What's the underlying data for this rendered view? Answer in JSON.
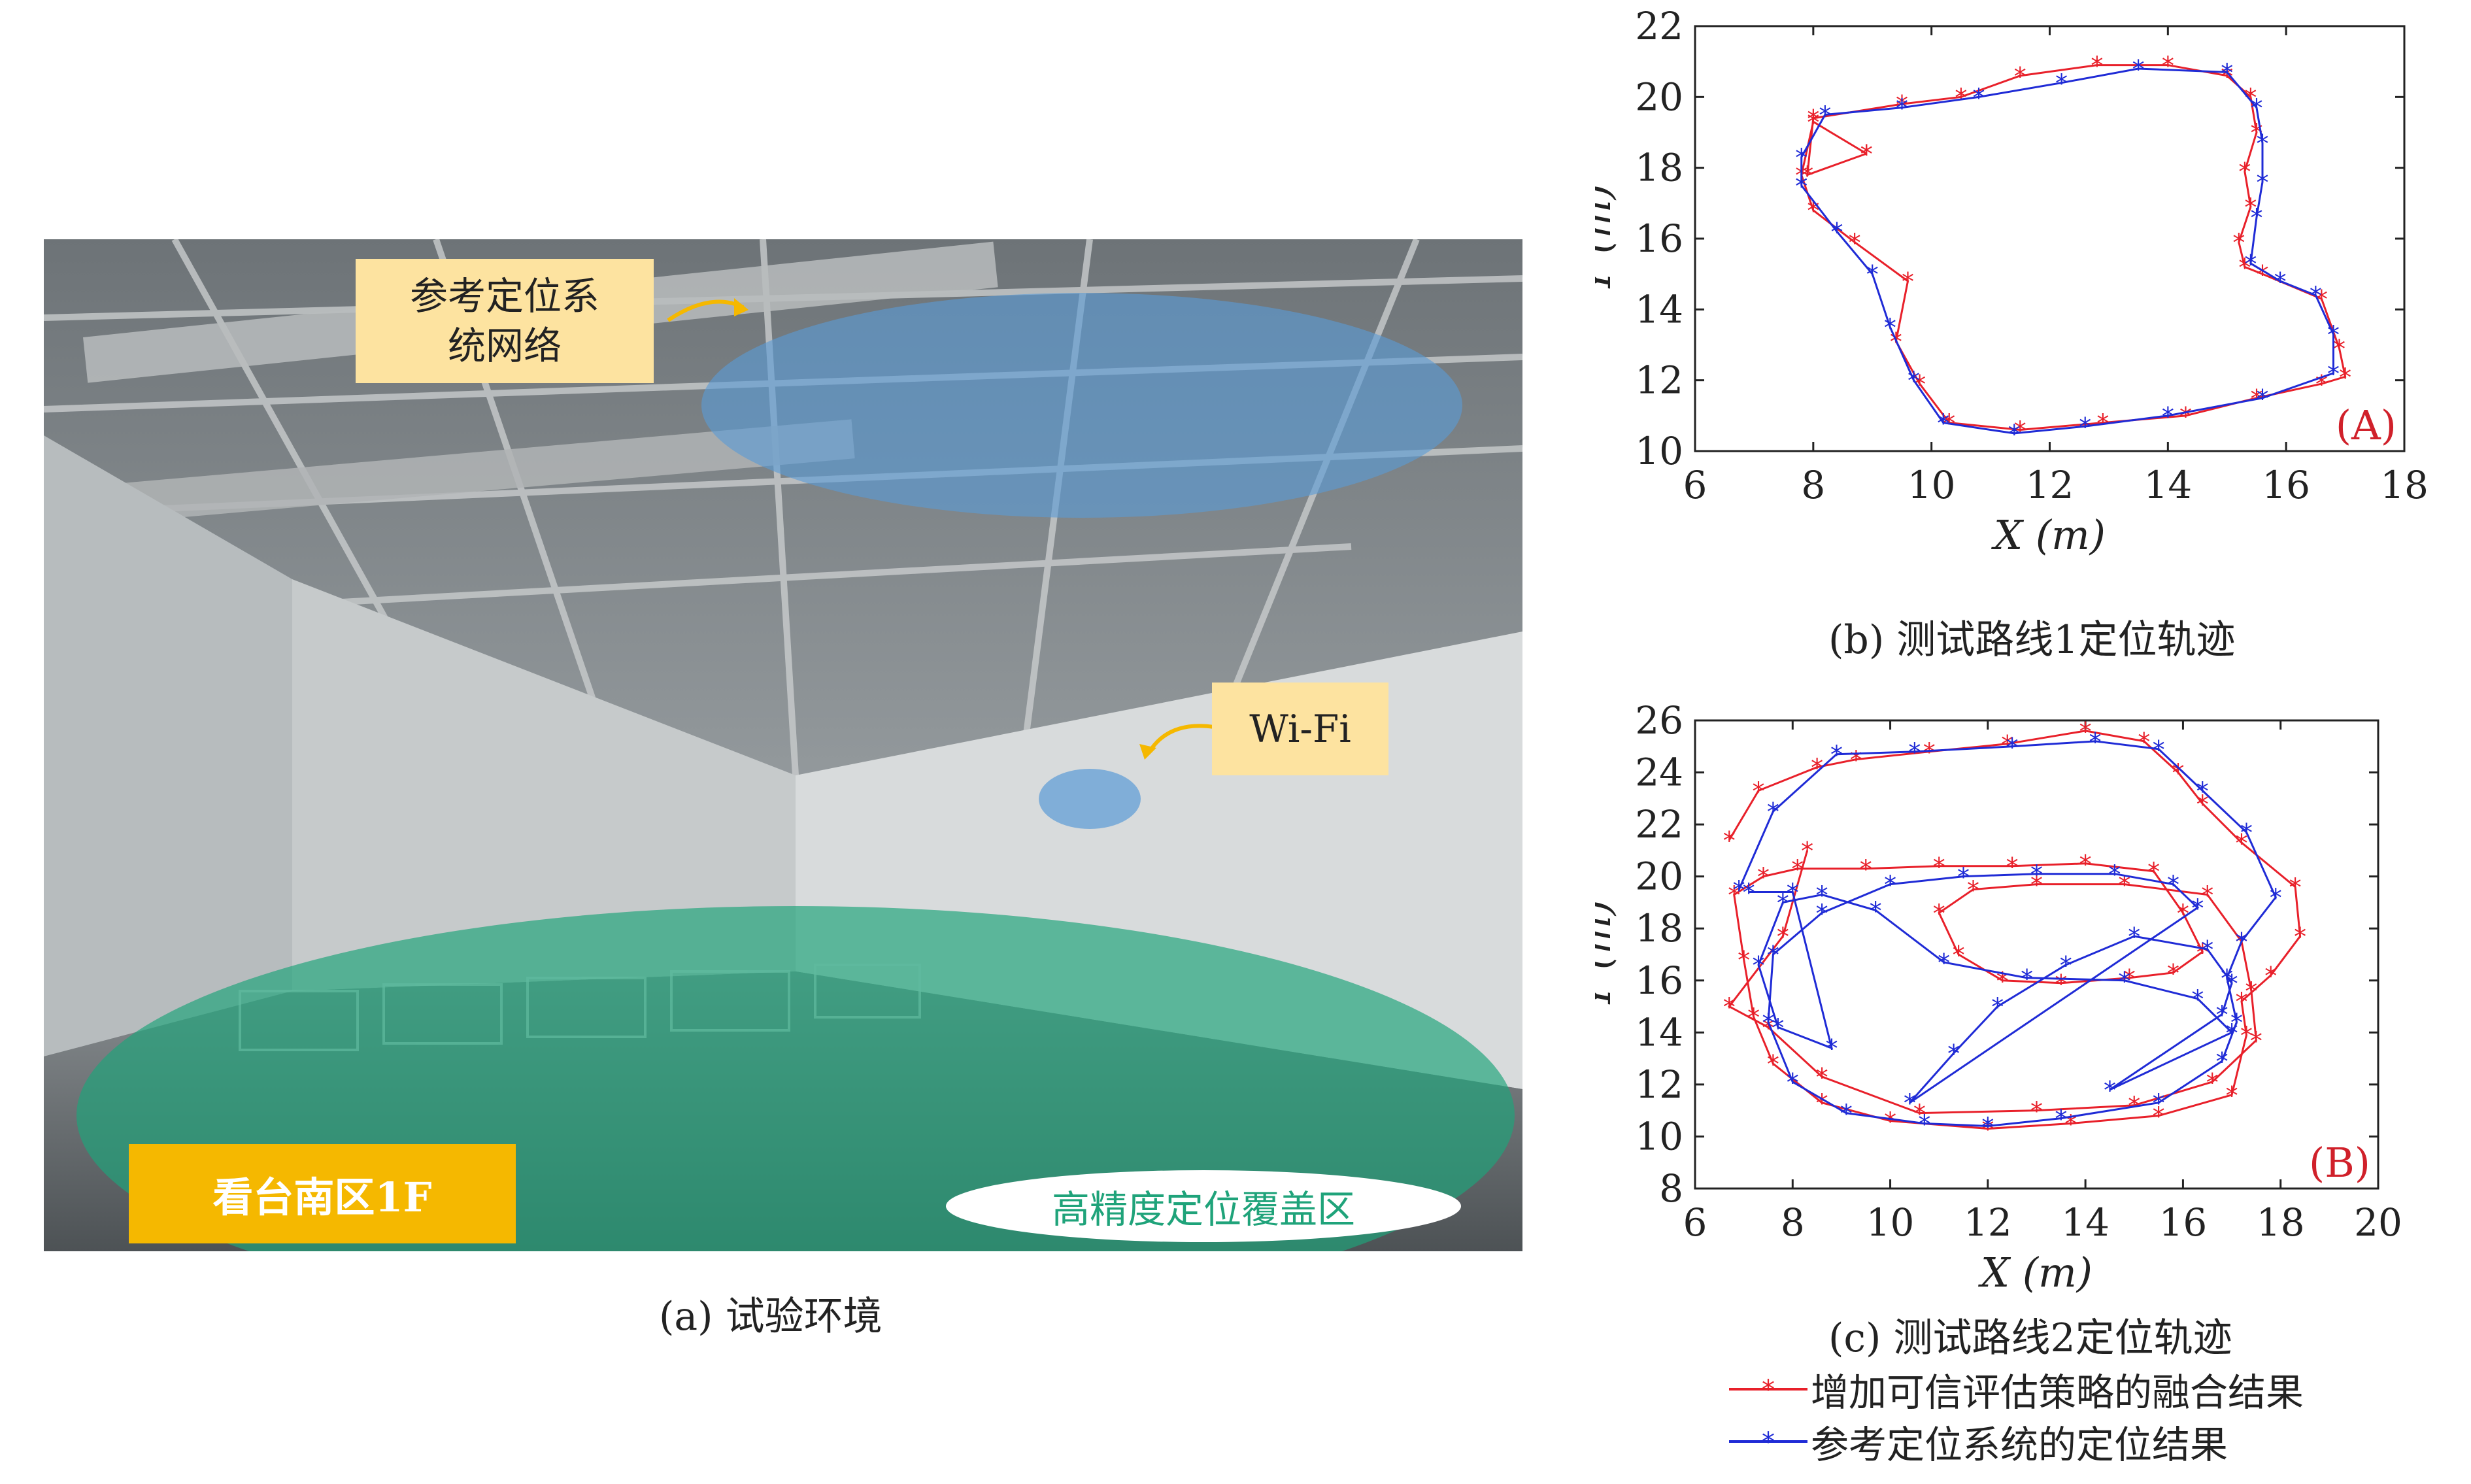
{
  "photo": {
    "label_ref_network": "参考定位系\n统网络",
    "label_wifi": "Wi-Fi",
    "label_area": "看台南区1F",
    "label_coverage": "高精度定位覆盖区",
    "caption": "(a) 试验环境",
    "colors": {
      "ref_ellipse": "#5b9bd5",
      "coverage": "#1fa37a",
      "label_bg": "#fde3a0",
      "area_bg": "#f5b800"
    }
  },
  "legend": {
    "fusion_label": "增加可信评估策略的融合结果",
    "reference_label": "参考定位系统的定位结果",
    "colors": {
      "fusion": "#e8202a",
      "reference": "#1f2bd6"
    }
  },
  "chart_data": [
    {
      "type": "line",
      "caption": "(b) 测试路线1定位轨迹",
      "corner_label": "(A)",
      "xlabel": "X (m)",
      "ylabel": "Y (m)",
      "xlim": [
        6,
        18
      ],
      "ylim": [
        10,
        22
      ],
      "xticks": [
        6,
        8,
        10,
        12,
        14,
        16,
        18
      ],
      "yticks": [
        10,
        12,
        14,
        16,
        18,
        20,
        22
      ],
      "series": [
        {
          "name": "增加可信评估策略的融合结果",
          "color": "#e8202a",
          "marker": "*",
          "x": [
            8.9,
            7.9,
            8.0,
            9.5,
            10.5,
            11.5,
            12.8,
            14.0,
            15.0,
            15.4,
            15.5,
            15.3,
            15.4,
            15.2,
            15.3,
            15.6,
            16.6,
            16.9,
            17.0,
            16.6,
            15.5,
            14.3,
            12.9,
            11.5,
            10.3,
            9.8,
            9.4,
            9.6,
            8.7,
            8.0,
            7.8,
            8.0,
            8.9
          ],
          "y": [
            18.4,
            17.8,
            19.4,
            19.8,
            20.0,
            20.6,
            20.9,
            20.9,
            20.6,
            20.0,
            19.0,
            17.9,
            16.9,
            15.9,
            15.2,
            15.0,
            14.3,
            12.9,
            12.1,
            11.9,
            11.5,
            11.0,
            10.8,
            10.6,
            10.8,
            11.9,
            13.1,
            14.8,
            15.9,
            16.8,
            17.8,
            19.3,
            18.4
          ]
        },
        {
          "name": "参考定位系统的定位结果",
          "color": "#1f2bd6",
          "marker": "*",
          "x": [
            7.8,
            7.8,
            8.2,
            9.5,
            10.8,
            12.2,
            13.5,
            15.0,
            15.5,
            15.6,
            15.6,
            15.5,
            15.4,
            15.9,
            16.5,
            16.8,
            16.8,
            15.6,
            14.0,
            12.6,
            11.4,
            10.2,
            9.7,
            9.3,
            9.0,
            8.4,
            7.8
          ],
          "y": [
            17.5,
            18.3,
            19.5,
            19.7,
            20.0,
            20.4,
            20.8,
            20.7,
            19.7,
            18.7,
            17.6,
            16.6,
            15.3,
            14.8,
            14.4,
            13.3,
            12.2,
            11.5,
            11.0,
            10.7,
            10.5,
            10.8,
            12.0,
            13.5,
            15.0,
            16.2,
            17.5
          ]
        }
      ]
    },
    {
      "type": "line",
      "caption": "(c) 测试路线2定位轨迹",
      "corner_label": "(B)",
      "xlabel": "X (m)",
      "ylabel": "Y (m)",
      "xlim": [
        6,
        20
      ],
      "ylim": [
        8,
        26
      ],
      "xticks": [
        6,
        8,
        10,
        12,
        14,
        16,
        18,
        20
      ],
      "yticks": [
        8,
        10,
        12,
        14,
        16,
        18,
        20,
        22,
        24,
        26
      ],
      "series": [
        {
          "name": "增加可信评估策略的融合结果",
          "color": "#e8202a",
          "marker": "*",
          "x": [
            6.7,
            7.3,
            8.5,
            9.3,
            10.8,
            12.4,
            14.0,
            15.2,
            15.9,
            16.4,
            17.2,
            18.3,
            18.4,
            17.8,
            17.2,
            17.3,
            17.0,
            15.5,
            13.7,
            12.0,
            10.0,
            8.6,
            7.6,
            7.2,
            7.0,
            6.8,
            7.4,
            8.1,
            9.5,
            11.0,
            12.5,
            14.0,
            15.4,
            16.0,
            16.4,
            15.8,
            14.9,
            13.5,
            12.3,
            11.4,
            11.0,
            11.7,
            13.0,
            14.8,
            16.5,
            17.2,
            17.4,
            17.5,
            16.6,
            15.0,
            13.0,
            10.6,
            8.6,
            7.5,
            6.7,
            7.8,
            8.3
          ],
          "y": [
            21.4,
            23.3,
            24.2,
            24.5,
            24.8,
            25.1,
            25.6,
            25.2,
            24.0,
            22.8,
            21.3,
            19.6,
            17.7,
            16.2,
            15.2,
            13.9,
            11.6,
            10.8,
            10.5,
            10.3,
            10.6,
            11.3,
            12.8,
            14.6,
            16.8,
            19.3,
            20.0,
            20.3,
            20.3,
            20.4,
            20.4,
            20.5,
            20.2,
            18.6,
            17.1,
            16.3,
            16.1,
            15.9,
            16.0,
            17.0,
            18.6,
            19.5,
            19.7,
            19.7,
            19.3,
            17.5,
            15.6,
            13.7,
            12.1,
            11.2,
            11.0,
            10.9,
            12.3,
            14.2,
            15.0,
            17.7,
            21.0
          ]
        },
        {
          "name": "参考定位系统的定位结果",
          "color": "#1f2bd6",
          "marker": "*",
          "x": [
            6.9,
            7.6,
            8.9,
            10.5,
            12.5,
            14.2,
            15.5,
            16.4,
            17.3,
            17.9,
            17.2,
            16.9,
            17.1,
            16.8,
            15.5,
            13.5,
            12.0,
            10.7,
            9.1,
            8.0,
            7.5,
            7.6,
            8.6,
            10.0,
            11.5,
            13.0,
            14.6,
            15.8,
            16.3,
            10.4,
            11.3,
            12.2,
            13.6,
            15.0,
            16.5,
            17.0,
            16.8,
            14.5,
            17.0,
            16.3,
            14.8,
            12.8,
            11.1,
            9.7,
            8.6,
            7.8,
            7.3,
            7.7,
            8.8,
            8.0,
            7.1
          ],
          "y": [
            19.5,
            22.5,
            24.7,
            24.8,
            25.0,
            25.2,
            24.9,
            23.3,
            21.7,
            19.2,
            17.5,
            16.1,
            14.4,
            12.9,
            11.3,
            10.7,
            10.4,
            10.5,
            10.9,
            12.1,
            14.4,
            17.0,
            18.6,
            19.7,
            20.0,
            20.1,
            20.1,
            19.7,
            18.8,
            11.3,
            13.2,
            15.0,
            16.6,
            17.7,
            17.2,
            15.9,
            14.7,
            11.8,
            14.0,
            15.3,
            16.0,
            16.1,
            16.7,
            18.7,
            19.3,
            19.0,
            16.6,
            14.2,
            13.4,
            19.4,
            19.4
          ]
        }
      ]
    }
  ]
}
